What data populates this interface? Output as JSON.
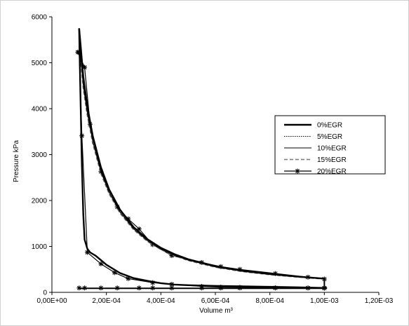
{
  "chart_data": {
    "type": "line",
    "xlabel": "Volume m³",
    "ylabel": "Pressure kPa",
    "xlim": [
      0,
      0.0012
    ],
    "ylim": [
      0,
      6000
    ],
    "x_ticks": [
      0,
      0.0002,
      0.0004,
      0.0006,
      0.0008,
      0.001,
      0.0012
    ],
    "x_tick_labels": [
      "0,00E+00",
      "2,00E-04",
      "4,00E-04",
      "6,00E-04",
      "8,00E-04",
      "1,00E-03",
      "1,20E-03"
    ],
    "y_ticks": [
      0,
      1000,
      2000,
      3000,
      4000,
      5000,
      6000
    ],
    "y_tick_labels": [
      "0",
      "1000",
      "2000",
      "3000",
      "4000",
      "5000",
      "6000"
    ],
    "grid": false,
    "legend_position": "right",
    "series": [
      {
        "name": "0%EGR",
        "style": "thick-solid",
        "expansion": {
          "v": [
            0.0001,
            0.000105,
            0.000115,
            0.00013,
            0.00015,
            0.00018,
            0.00021,
            0.00025,
            0.0003,
            0.00035,
            0.0004,
            0.00045,
            0.0005,
            0.0006,
            0.0007,
            0.0008,
            0.0009,
            0.001
          ],
          "p": [
            5750,
            5400,
            4700,
            4050,
            3400,
            2720,
            2240,
            1800,
            1420,
            1160,
            970,
            830,
            720,
            570,
            470,
            400,
            345,
            300
          ]
        },
        "compression": {
          "v": [
            0.00101,
            0.0009,
            0.0008,
            0.0007,
            0.0006,
            0.0005,
            0.00045,
            0.0004,
            0.00035,
            0.0003,
            0.00025,
            0.0002,
            0.00018,
            0.00016,
            0.00014,
            0.00013,
            0.00012,
            0.000115,
            0.00011,
            0.000105,
            0.0001
          ],
          "p": [
            95,
            110,
            120,
            130,
            140,
            155,
            170,
            200,
            250,
            310,
            420,
            600,
            700,
            800,
            870,
            950,
            1150,
            1700,
            2800,
            4200,
            5750
          ]
        }
      },
      {
        "name": "5%EGR",
        "style": "dotted",
        "expansion": {
          "v": [
            0.0001,
            0.000105,
            0.000115,
            0.00013,
            0.00015,
            0.00018,
            0.00021,
            0.00025,
            0.0003,
            0.00035,
            0.0004,
            0.00045,
            0.0005,
            0.0006,
            0.0007,
            0.0008,
            0.0009,
            0.001
          ],
          "p": [
            5550,
            5250,
            4580,
            3960,
            3330,
            2660,
            2200,
            1770,
            1400,
            1140,
            955,
            815,
            710,
            560,
            462,
            393,
            340,
            296
          ]
        }
      },
      {
        "name": "10%EGR",
        "style": "thin-solid",
        "expansion": {
          "v": [
            0.0001,
            0.000105,
            0.000115,
            0.00013,
            0.00015,
            0.00018,
            0.00021,
            0.00025,
            0.0003,
            0.00035,
            0.0004,
            0.00045,
            0.0005,
            0.0006,
            0.0007,
            0.0008,
            0.0009,
            0.001
          ],
          "p": [
            5450,
            5150,
            4500,
            3900,
            3280,
            2620,
            2170,
            1745,
            1380,
            1125,
            942,
            805,
            700,
            553,
            456,
            388,
            336,
            292
          ]
        }
      },
      {
        "name": "15%EGR",
        "style": "dashed",
        "expansion": {
          "v": [
            0.0001,
            0.000105,
            0.000115,
            0.00013,
            0.00015,
            0.00018,
            0.00021,
            0.00025,
            0.0003,
            0.00035,
            0.0004,
            0.00045,
            0.0005,
            0.0006,
            0.0007,
            0.0008,
            0.0009,
            0.001
          ],
          "p": [
            5350,
            5060,
            4430,
            3840,
            3230,
            2580,
            2140,
            1720,
            1360,
            1110,
            930,
            795,
            692,
            546,
            450,
            383,
            332,
            288
          ]
        }
      },
      {
        "name": "20%EGR",
        "style": "asterisk",
        "expansion": {
          "v": [
            9.5e-05,
            0.00012,
            0.00014,
            0.00018,
            0.00024,
            0.00028,
            0.00032,
            0.00037,
            0.00044,
            0.00055,
            0.00062,
            0.00069,
            0.00082,
            0.00094,
            0.001
          ],
          "p": [
            5230,
            4900,
            3660,
            2630,
            1860,
            1600,
            1380,
            1040,
            800,
            650,
            560,
            500,
            410,
            330,
            290
          ]
        },
        "compression": {
          "v": [
            0.0001,
            0.00011,
            0.00013,
            0.00018,
            0.00023,
            0.00028,
            0.00037,
            0.00044,
            0.00055,
            0.00062,
            0.00069,
            0.00082,
            0.00094,
            0.001
          ],
          "p": [
            5230,
            3410,
            870,
            620,
            430,
            300,
            210,
            175,
            130,
            115,
            110,
            100,
            95,
            90
          ]
        },
        "exhaust": {
          "v": [
            0.0001,
            0.00012,
            0.00018,
            0.00024,
            0.00032,
            0.00037,
            0.00044,
            0.00055,
            0.00062,
            0.00069,
            0.00082,
            0.00094,
            0.001
          ],
          "p": [
            95,
            95,
            95,
            95,
            95,
            95,
            95,
            95,
            95,
            95,
            95,
            95,
            95
          ]
        }
      }
    ],
    "gas_exchange_loop": {
      "v": [
        0.0001,
        0.0003,
        0.0005,
        0.0007,
        0.0009,
        0.001
      ],
      "p": [
        85,
        85,
        85,
        85,
        85,
        85
      ]
    }
  }
}
